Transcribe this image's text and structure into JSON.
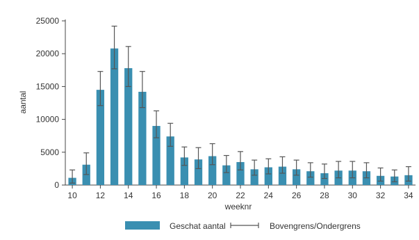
{
  "chart_data": {
    "type": "bar",
    "xlabel": "weeknr",
    "ylabel": "aantal",
    "ylim": [
      0,
      25000
    ],
    "yticks": [
      0,
      5000,
      10000,
      15000,
      20000,
      25000
    ],
    "ytick_labels": [
      "0",
      "5000",
      "10000",
      "15000",
      "20000",
      "25000"
    ],
    "xticks": [
      10,
      12,
      14,
      16,
      18,
      20,
      22,
      24,
      26,
      28,
      30,
      32,
      34
    ],
    "xtick_labels": [
      "10",
      "12",
      "14",
      "16",
      "18",
      "20",
      "22",
      "24",
      "26",
      "28",
      "30",
      "32",
      "34"
    ],
    "grid": false,
    "legend_position": "bottom",
    "bar_color": "#3a8fb1",
    "errorbar_color": "#555555",
    "categories": [
      10,
      11,
      12,
      13,
      14,
      15,
      16,
      17,
      18,
      19,
      20,
      21,
      22,
      23,
      24,
      25,
      26,
      27,
      28,
      29,
      30,
      31,
      32,
      33,
      34
    ],
    "series": [
      {
        "name": "Geschat aantal",
        "values": [
          1100,
          3100,
          14500,
          20800,
          17800,
          14200,
          9000,
          7400,
          4200,
          3900,
          4400,
          3000,
          3500,
          2400,
          2700,
          2800,
          2400,
          2100,
          1800,
          2200,
          2200,
          2100,
          1400,
          1300,
          1500
        ]
      },
      {
        "name": "Bovengrens/Ondergrens",
        "upper": [
          2300,
          4900,
          17300,
          24200,
          21100,
          17300,
          11300,
          9400,
          5800,
          5700,
          6300,
          4500,
          5100,
          3800,
          4000,
          4300,
          3800,
          3400,
          3200,
          3600,
          3600,
          3400,
          2600,
          2300,
          2800
        ],
        "lower": [
          300,
          1600,
          12100,
          17700,
          15000,
          11800,
          7200,
          5900,
          3000,
          2500,
          3100,
          1900,
          2300,
          1500,
          1700,
          1800,
          1500,
          1200,
          1000,
          1100,
          1100,
          1100,
          600,
          500,
          600
        ]
      }
    ]
  }
}
